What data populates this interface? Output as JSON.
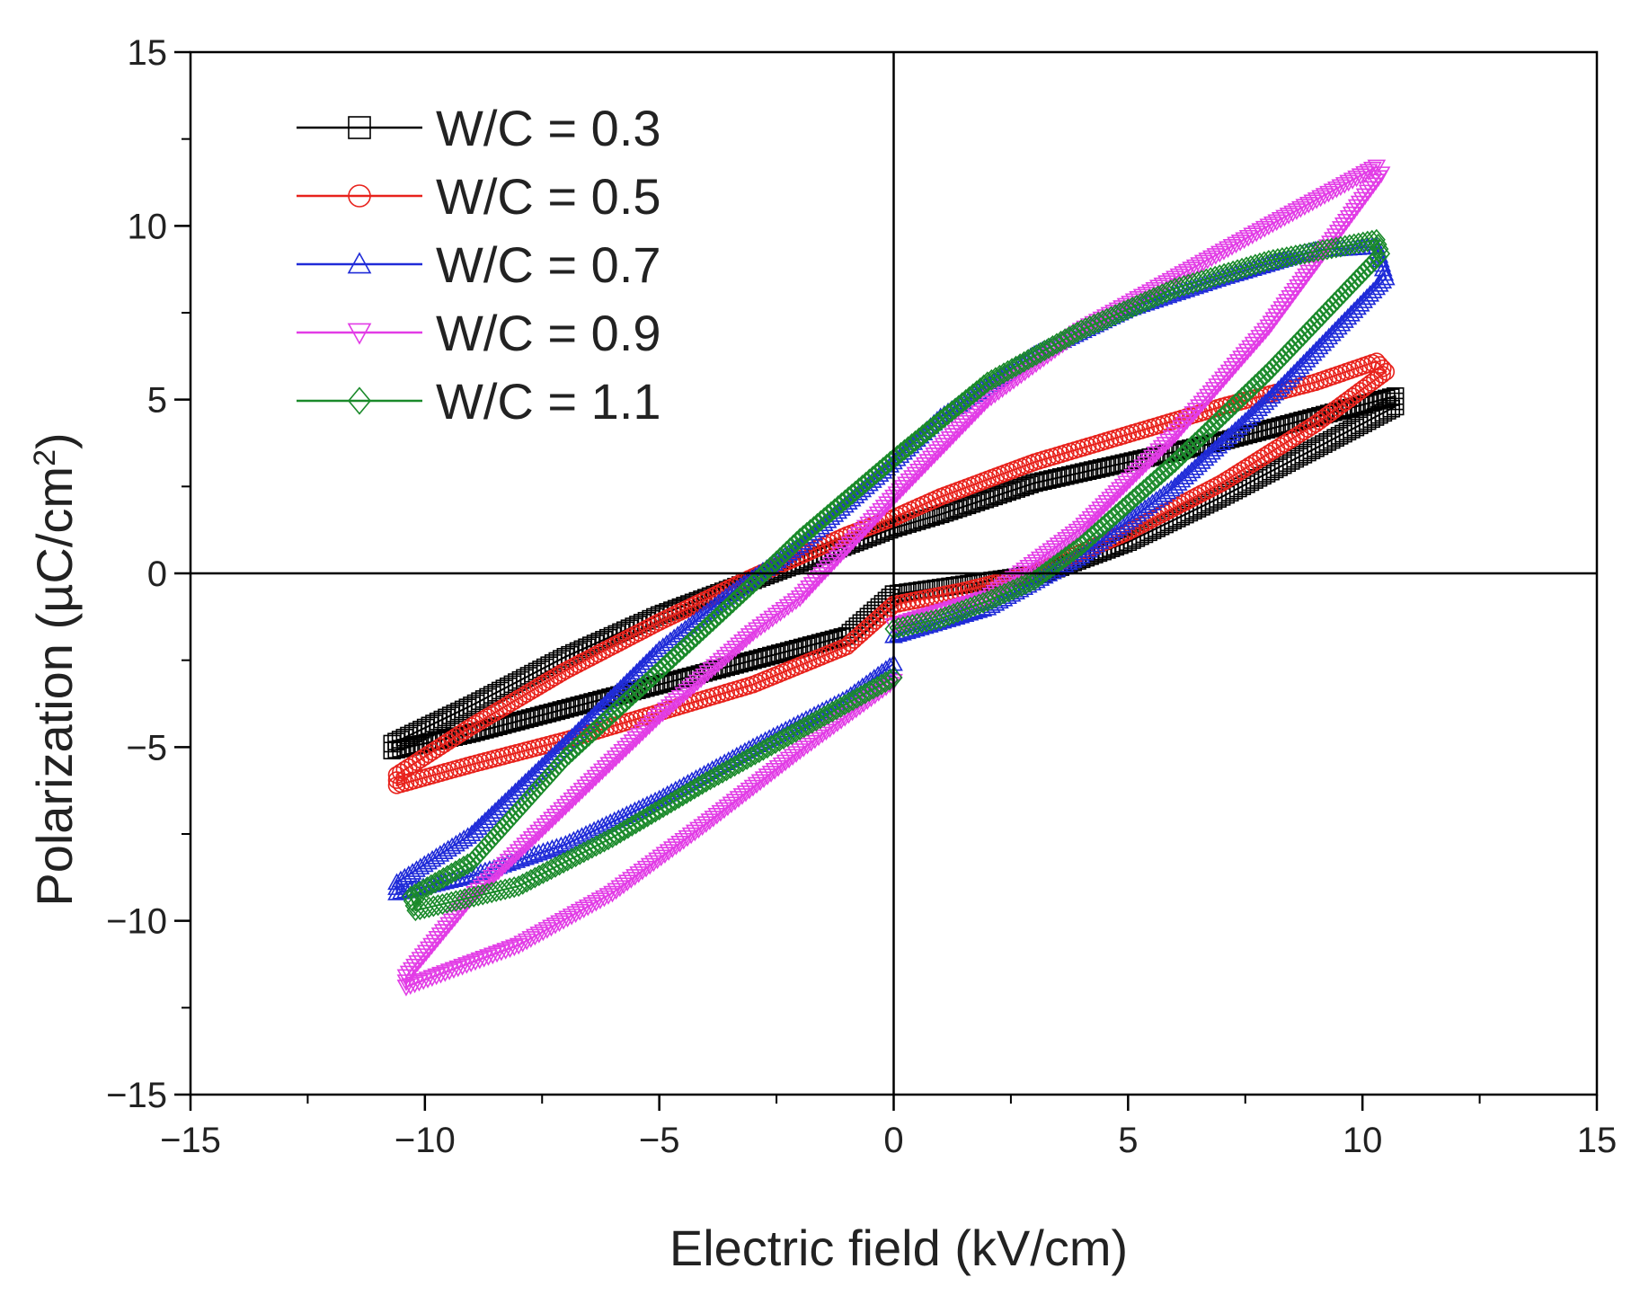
{
  "chart_data": {
    "type": "line",
    "title": "",
    "xlabel": "Electric field (kV/cm)",
    "ylabel": "Polarization (µC/cm²)",
    "ylabel_text": "Polarization (µC/cm",
    "ylabel_sup": "2",
    "ylabel_close": ")",
    "xlim": [
      -15,
      15
    ],
    "ylim": [
      -15,
      15
    ],
    "xticks": [
      -15,
      -10,
      -5,
      0,
      5,
      10,
      15
    ],
    "yticks": [
      -15,
      -10,
      -5,
      0,
      5,
      10,
      15
    ],
    "xtick_labels": [
      "−15",
      "−10",
      "−5",
      "0",
      "5",
      "10",
      "15"
    ],
    "ytick_labels": [
      "−15",
      "−10",
      "−5",
      "0",
      "5",
      "10",
      "15"
    ],
    "legend_position": "top-left",
    "series": [
      {
        "name": "W/C = 0.3",
        "color": "#000000",
        "marker": "square",
        "x": [
          0,
          1.6,
          3.2,
          5,
          7,
          9,
          10.7,
          10.7,
          9,
          7,
          5,
          3,
          1,
          0,
          -1,
          -3,
          -5,
          -7,
          -9,
          -10.7,
          -10.7,
          -9,
          -7,
          -5,
          -3,
          -1,
          0
        ],
        "y": [
          -0.6,
          -0.3,
          0.0,
          0.9,
          2.2,
          3.6,
          4.8,
          5.1,
          4.5,
          3.8,
          3.2,
          2.6,
          1.7,
          1.3,
          0.8,
          -0.2,
          -1.2,
          -2.4,
          -3.8,
          -4.9,
          -5.1,
          -4.6,
          -3.9,
          -3.2,
          -2.5,
          -1.8,
          -0.6
        ]
      },
      {
        "name": "W/C = 0.5",
        "color": "#e8221c",
        "marker": "circle",
        "x": [
          0,
          1.5,
          3,
          5,
          7,
          9,
          10.5,
          10.3,
          9,
          7,
          5,
          3,
          1,
          0,
          -1,
          -3,
          -5,
          -7,
          -9,
          -10.6,
          -10.6,
          -9,
          -7,
          -5,
          -3,
          -1,
          0
        ],
        "y": [
          -0.9,
          -0.5,
          0.0,
          1.2,
          2.6,
          4.3,
          5.8,
          6.1,
          5.5,
          4.8,
          4.0,
          3.2,
          2.2,
          1.6,
          1.1,
          -0.1,
          -1.4,
          -2.8,
          -4.4,
          -5.8,
          -6.1,
          -5.5,
          -4.8,
          -4.0,
          -3.2,
          -2.1,
          -0.9
        ]
      },
      {
        "name": "W/C = 0.7",
        "color": "#1f2bd8",
        "marker": "triangle-up",
        "x": [
          0,
          2,
          4,
          6,
          8,
          10.5,
          10.3,
          9,
          7,
          5,
          3,
          1,
          0,
          -2,
          -3.5,
          -5,
          -7,
          -9,
          -10.6,
          -10.6,
          -9,
          -7,
          -5,
          -3,
          -1,
          0
        ],
        "y": [
          -1.8,
          -1.0,
          0.5,
          2.5,
          5.0,
          8.5,
          9.4,
          9.3,
          8.5,
          7.6,
          6.3,
          4.5,
          3.2,
          0.8,
          -0.6,
          -2.2,
          -4.9,
          -7.5,
          -8.9,
          -9.2,
          -8.7,
          -7.8,
          -6.5,
          -5.0,
          -3.6,
          -2.6
        ]
      },
      {
        "name": "W/C = 0.9",
        "color": "#e23ce6",
        "marker": "triangle-down",
        "x": [
          0,
          2,
          4,
          6,
          8,
          10.4,
          10.3,
          8,
          6,
          4,
          2,
          0,
          -2,
          -3,
          -5,
          -7,
          -9,
          -10.4,
          -10.4,
          -8,
          -6,
          -4,
          -2,
          0
        ],
        "y": [
          -1.5,
          -0.7,
          1.3,
          4.0,
          7.1,
          11.5,
          11.7,
          10.0,
          8.5,
          7.0,
          5.0,
          2.2,
          -0.7,
          -1.7,
          -4.1,
          -6.7,
          -9.3,
          -11.6,
          -11.9,
          -10.7,
          -9.2,
          -7.2,
          -5.1,
          -3.1
        ]
      },
      {
        "name": "W/C = 1.1",
        "color": "#1a8a2a",
        "marker": "diamond",
        "x": [
          0,
          1,
          2,
          3,
          4,
          6,
          8,
          10.4,
          10.3,
          8,
          6,
          4,
          2,
          0,
          -2,
          -3,
          -5,
          -7,
          -9,
          -10.3,
          -10.2,
          -8,
          -6,
          -4,
          -2,
          0
        ],
        "y": [
          -1.6,
          -1.3,
          -0.8,
          -0.2,
          0.8,
          3.2,
          5.8,
          9.2,
          9.6,
          9.0,
          8.2,
          7.0,
          5.5,
          3.3,
          1.0,
          -0.3,
          -2.8,
          -5.3,
          -8.3,
          -9.3,
          -9.7,
          -9.0,
          -7.6,
          -6.0,
          -4.5,
          -3.0
        ]
      }
    ]
  }
}
